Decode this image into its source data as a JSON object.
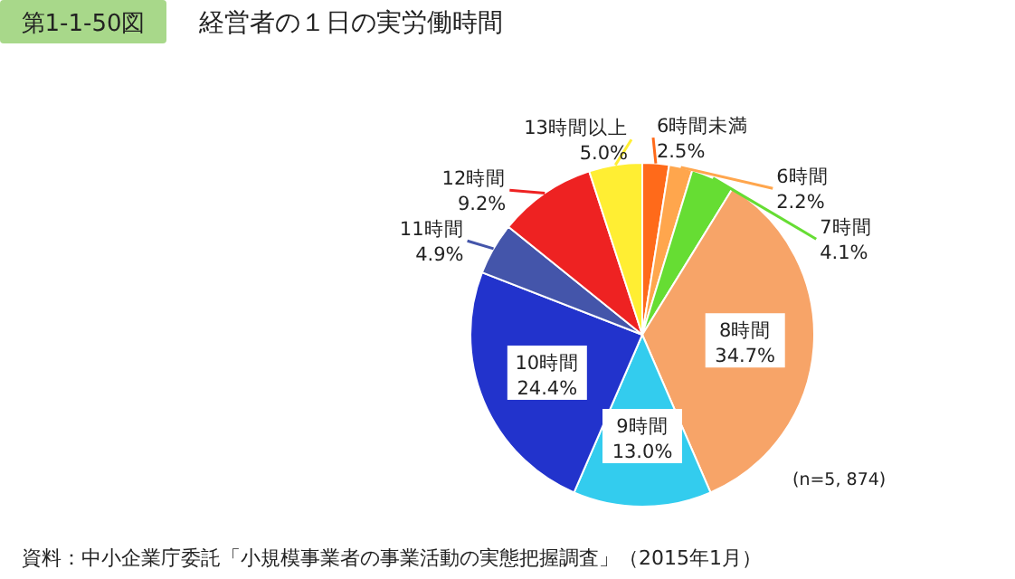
{
  "chart_data": {
    "type": "pie",
    "title": "経営者の１日の実労働時間",
    "categories": [
      "6時間未満",
      "6時間",
      "7時間",
      "8時間",
      "9時間",
      "10時間",
      "11時間",
      "12時間",
      "13時間以上"
    ],
    "values": [
      2.5,
      2.2,
      4.1,
      34.7,
      13.0,
      24.4,
      4.9,
      9.2,
      5.0
    ],
    "colors": [
      "#ff6a1a",
      "#ffa64d",
      "#66dd33",
      "#f7a468",
      "#33ccee",
      "#2233cc",
      "#4455aa",
      "#ee2222",
      "#ffee33"
    ],
    "value_labels": [
      "2.5%",
      "2.2%",
      "4.1%",
      "34.7%",
      "13.0%",
      "24.4%",
      "4.9%",
      "9.2%",
      "5.0%"
    ],
    "annotations": [
      "第1-1-50図",
      "(n=5, 874)",
      "資料：中小企業庁委託「小規模事業者の事業活動の実態把握調査」（2015年1月）"
    ]
  }
}
